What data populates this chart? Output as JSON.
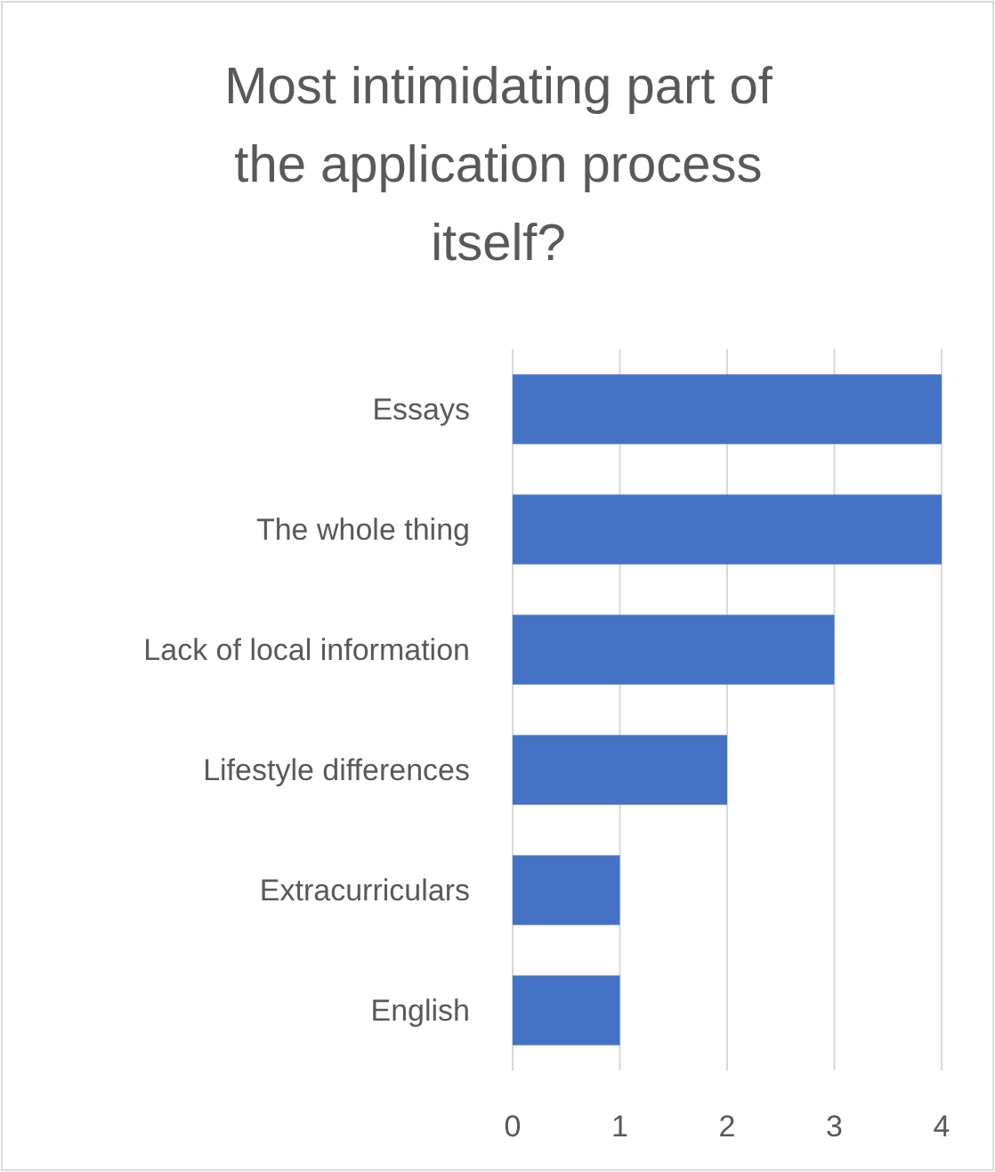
{
  "chart_data": {
    "type": "bar",
    "orientation": "horizontal",
    "title": "Most intimidating part of the application process itself?",
    "categories": [
      "Essays",
      "The whole thing",
      "Lack of local information",
      "Lifestyle differences",
      "Extracurriculars",
      "English"
    ],
    "values": [
      4,
      4,
      3,
      2,
      1,
      1
    ],
    "color": "#4472c4",
    "xlim": [
      0,
      4
    ],
    "xticks": [
      0,
      1,
      2,
      3,
      4
    ],
    "grid": "x"
  }
}
